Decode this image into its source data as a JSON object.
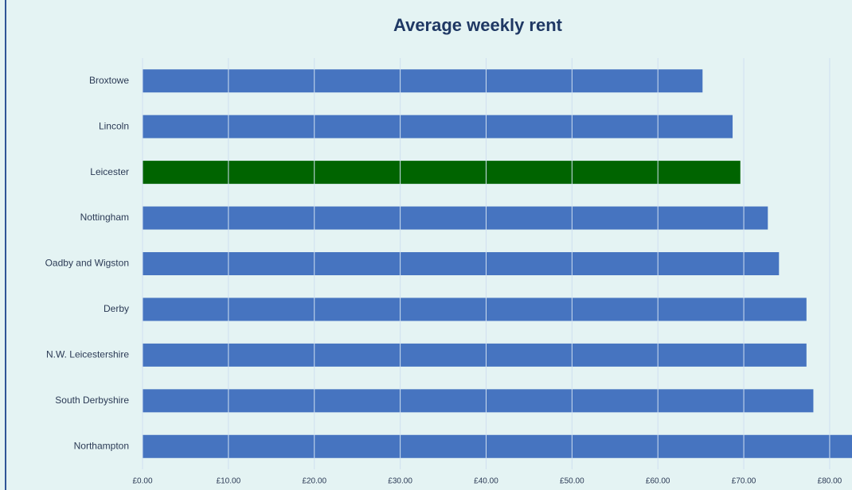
{
  "chart_data": {
    "type": "barh",
    "title": "Average weekly rent",
    "categories": [
      "Broxtowe",
      "Lincoln",
      "Leicester",
      "Nottingham",
      "Oadby and Wigston",
      "Derby",
      "N.W. Leicestershire",
      "South Derbyshire",
      "Northampton"
    ],
    "values": [
      65.2,
      68.7,
      69.6,
      72.8,
      74.1,
      77.3,
      77.3,
      78.1,
      83
    ],
    "colors": [
      "#4674c0",
      "#4674c0",
      "#006400",
      "#4674c0",
      "#4674c0",
      "#4674c0",
      "#4674c0",
      "#4674c0",
      "#4674c0"
    ],
    "xlim": [
      0,
      82.6
    ],
    "xticks": [
      {
        "value": 0,
        "label": "£0.00"
      },
      {
        "value": 10,
        "label": "£10.00"
      },
      {
        "value": 20,
        "label": "£20.00"
      },
      {
        "value": 30,
        "label": "£30.00"
      },
      {
        "value": 40,
        "label": "£40.00"
      },
      {
        "value": 50,
        "label": "£50.00"
      },
      {
        "value": 60,
        "label": "£60.00"
      },
      {
        "value": 70,
        "label": "£70.00"
      },
      {
        "value": 80,
        "label": "£80.00"
      }
    ],
    "grid": true
  }
}
